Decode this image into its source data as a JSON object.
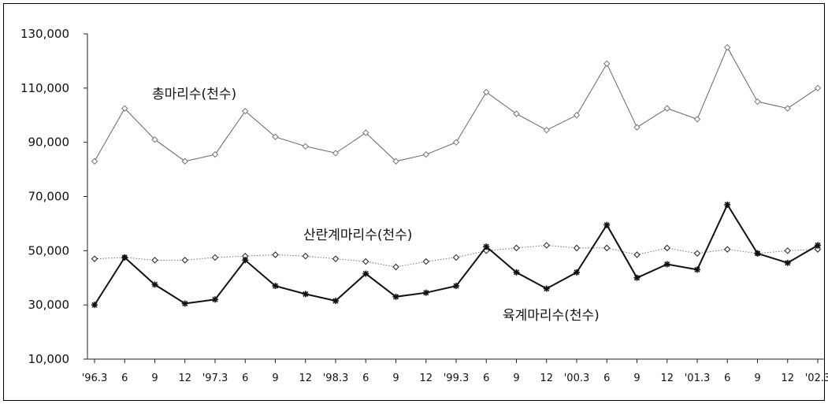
{
  "chart_data": {
    "type": "line",
    "title": "",
    "xlabel": "",
    "ylabel": "",
    "ylim": [
      10000,
      130000
    ],
    "y_ticks": [
      "130,000",
      "110,000",
      "90,000",
      "70,000",
      "50,000",
      "30,000",
      "10,000"
    ],
    "categories": [
      "'96.3",
      "6",
      "9",
      "12",
      "'97.3",
      "6",
      "9",
      "12",
      "'98.3",
      "6",
      "9",
      "12",
      "'99.3",
      "6",
      "9",
      "12",
      "'00.3",
      "6",
      "9",
      "12",
      "'01.3",
      "6",
      "9",
      "12",
      "'02.3"
    ],
    "grid": false,
    "legend": "none",
    "series": [
      {
        "name": "총마리수(천수)",
        "style": "thin-gray-diamond",
        "values": [
          83000,
          102500,
          91000,
          83000,
          85500,
          101500,
          92000,
          88500,
          86000,
          93500,
          83000,
          85500,
          90000,
          108500,
          100500,
          94500,
          100000,
          119000,
          95500,
          102500,
          98500,
          125000,
          105000,
          102500,
          110000
        ]
      },
      {
        "name": "산란계마리수(천수)",
        "style": "dotted-diamond",
        "values": [
          47000,
          47500,
          46500,
          46500,
          47500,
          48000,
          48500,
          48000,
          47000,
          46000,
          44000,
          46000,
          47500,
          50000,
          51000,
          52000,
          51000,
          51000,
          48500,
          51000,
          49000,
          50500,
          49000,
          50000,
          50500
        ]
      },
      {
        "name": "육계마리수(천수)",
        "style": "bold-black-star",
        "values": [
          30000,
          47500,
          37500,
          30500,
          32000,
          46500,
          37000,
          34000,
          31500,
          41500,
          33000,
          34500,
          37000,
          51500,
          42000,
          36000,
          42000,
          59500,
          40000,
          45000,
          43000,
          67000,
          49000,
          45500,
          52000
        ]
      }
    ],
    "annotations": [
      {
        "text": "총마리수(천수)",
        "series": 0
      },
      {
        "text": "산란계마리수(천수)",
        "series": 1
      },
      {
        "text": "육계마리수(천수)",
        "series": 2
      }
    ]
  },
  "colors": {
    "total_line": "#666666",
    "total_marker": "#777777",
    "layer_line": "#777777",
    "layer_marker": "#222222",
    "broiler_line": "#111111",
    "broiler_marker": "#111111",
    "axis": "#222222"
  }
}
